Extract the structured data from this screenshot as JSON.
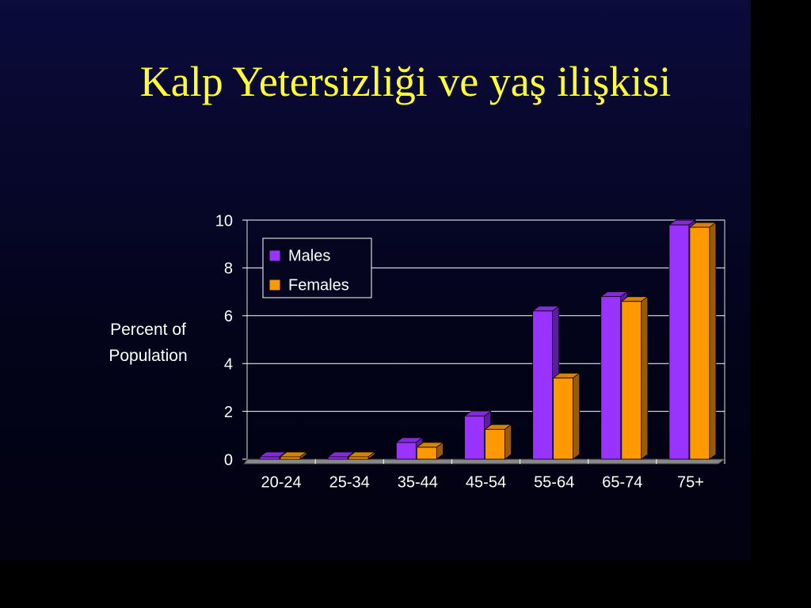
{
  "chart_data": {
    "type": "bar3d",
    "title": "Kalp Yetersizliği ve yaş ilişkisi",
    "y_label": "Percent of Population",
    "categories": [
      "20-24",
      "25-34",
      "35-44",
      "45-54",
      "55-64",
      "65-74",
      "75+"
    ],
    "series": [
      {
        "name": "Males",
        "color": "#9933ff",
        "values": [
          0.1,
          0.1,
          0.7,
          1.8,
          6.2,
          6.8,
          9.8
        ]
      },
      {
        "name": "Females",
        "color": "#ff9900",
        "values": [
          0.1,
          0.1,
          0.5,
          1.25,
          3.4,
          6.6,
          9.7
        ]
      }
    ],
    "ylim": [
      0,
      10
    ],
    "yticks": [
      0,
      2,
      4,
      6,
      8,
      10
    ],
    "grid": true,
    "legend": "upper left"
  }
}
